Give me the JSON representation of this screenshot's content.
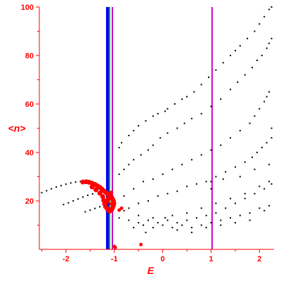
{
  "chart_data": {
    "type": "scatter",
    "title": "",
    "xlabel": "E",
    "ylabel": "<n>",
    "xlim": [
      -2.55,
      2.3
    ],
    "ylim": [
      0,
      100
    ],
    "x_ticks": [
      -2,
      -1,
      0,
      1,
      2
    ],
    "y_ticks": [
      20,
      40,
      60,
      80,
      100
    ],
    "grid": false,
    "legend": "none",
    "colors": {
      "axis": "#ff0000",
      "points": "#000000",
      "highlight": "#ff0000",
      "line_blue": "#0000ff",
      "line_green": "#00aa00",
      "line_magenta": "#cc00cc"
    },
    "vertical_lines": [
      {
        "x": -1.15,
        "color": "#0000ff"
      },
      {
        "x": -1.13,
        "color": "#0000ff"
      },
      {
        "x": -1.1,
        "color": "#00aa00"
      },
      {
        "x": -1.04,
        "color": "#cc00cc"
      },
      {
        "x": 1.02,
        "color": "#cc00cc"
      }
    ],
    "series": [
      {
        "color": "#000000",
        "points": [
          [
            -2.5,
            23.4
          ],
          [
            -2.4,
            24.2
          ],
          [
            -2.3,
            25
          ],
          [
            -2.2,
            25.7
          ],
          [
            -2.1,
            26.3
          ],
          [
            -2.0,
            26.9
          ],
          [
            -1.9,
            27.4
          ],
          [
            -1.8,
            27.8
          ],
          [
            -1.7,
            28.0
          ],
          [
            -2.05,
            18.5
          ],
          [
            -1.95,
            19.2
          ],
          [
            -1.85,
            20
          ],
          [
            -1.75,
            20.8
          ],
          [
            -1.65,
            21.6
          ],
          [
            -1.55,
            22.3
          ],
          [
            -1.45,
            22.9
          ],
          [
            -1.6,
            15.5
          ],
          [
            -1.5,
            16.2
          ],
          [
            -1.4,
            16.9
          ],
          [
            -1.3,
            17.6
          ],
          [
            -1.2,
            18.2
          ],
          [
            -0.9,
            42
          ],
          [
            -0.85,
            44
          ],
          [
            -0.7,
            47
          ],
          [
            -0.6,
            49
          ],
          [
            -0.5,
            51
          ],
          [
            -0.35,
            53
          ],
          [
            -0.2,
            55
          ],
          [
            -0.1,
            56
          ],
          [
            0.05,
            57
          ],
          [
            0.1,
            58
          ],
          [
            0.25,
            60
          ],
          [
            0.4,
            62
          ],
          [
            0.5,
            63
          ],
          [
            0.65,
            65
          ],
          [
            0.8,
            68
          ],
          [
            0.95,
            71
          ],
          [
            1.1,
            74
          ],
          [
            1.25,
            77
          ],
          [
            1.4,
            80
          ],
          [
            1.5,
            82
          ],
          [
            1.6,
            84
          ],
          [
            1.75,
            87
          ],
          [
            1.9,
            90
          ],
          [
            2.0,
            93
          ],
          [
            2.1,
            96
          ],
          [
            2.2,
            99
          ],
          [
            2.25,
            100
          ],
          [
            -0.9,
            31
          ],
          [
            -0.8,
            33
          ],
          [
            -0.7,
            35
          ],
          [
            -0.6,
            37
          ],
          [
            -0.45,
            39
          ],
          [
            -0.3,
            41
          ],
          [
            -0.2,
            43
          ],
          [
            -0.05,
            46
          ],
          [
            0.1,
            48
          ],
          [
            0.3,
            50
          ],
          [
            0.45,
            52
          ],
          [
            0.6,
            54
          ],
          [
            0.8,
            56
          ],
          [
            1.0,
            59
          ],
          [
            1.2,
            62
          ],
          [
            1.4,
            66
          ],
          [
            1.55,
            69
          ],
          [
            1.7,
            72
          ],
          [
            1.85,
            75
          ],
          [
            1.95,
            78
          ],
          [
            2.05,
            80
          ],
          [
            2.15,
            83
          ],
          [
            2.2,
            85
          ],
          [
            2.25,
            87
          ],
          [
            -0.8,
            22
          ],
          [
            -0.6,
            25
          ],
          [
            -0.4,
            28
          ],
          [
            -0.2,
            29
          ],
          [
            0.0,
            31
          ],
          [
            0.2,
            33
          ],
          [
            0.4,
            35
          ],
          [
            0.6,
            37
          ],
          [
            0.8,
            39
          ],
          [
            1.0,
            41
          ],
          [
            1.2,
            43
          ],
          [
            1.4,
            46
          ],
          [
            1.6,
            49
          ],
          [
            1.8,
            52
          ],
          [
            1.9,
            55
          ],
          [
            2.0,
            58
          ],
          [
            2.1,
            61
          ],
          [
            2.15,
            63
          ],
          [
            2.2,
            65
          ],
          [
            2.25,
            50
          ],
          [
            -0.7,
            17
          ],
          [
            -0.5,
            19
          ],
          [
            -0.3,
            20
          ],
          [
            -0.1,
            22
          ],
          [
            0.1,
            23
          ],
          [
            0.3,
            24
          ],
          [
            0.5,
            26
          ],
          [
            0.7,
            27
          ],
          [
            0.9,
            28
          ],
          [
            1.1,
            30
          ],
          [
            1.3,
            32
          ],
          [
            1.5,
            34
          ],
          [
            1.7,
            36
          ],
          [
            1.85,
            38
          ],
          [
            1.95,
            40
          ],
          [
            2.05,
            42
          ],
          [
            2.15,
            44
          ],
          [
            2.25,
            46
          ],
          [
            -0.9,
            13
          ],
          [
            -0.7,
            12
          ],
          [
            -0.5,
            11
          ],
          [
            -0.3,
            12
          ],
          [
            -0.1,
            11
          ],
          [
            0.1,
            12
          ],
          [
            0.3,
            11
          ],
          [
            0.5,
            12
          ],
          [
            0.7,
            13
          ],
          [
            0.9,
            14
          ],
          [
            1.1,
            15
          ],
          [
            1.3,
            17
          ],
          [
            1.5,
            19
          ],
          [
            1.7,
            21
          ],
          [
            1.9,
            23
          ],
          [
            2.1,
            25
          ],
          [
            2.25,
            27
          ],
          [
            -0.6,
            9
          ],
          [
            -0.4,
            10
          ],
          [
            -0.2,
            9
          ],
          [
            0.0,
            10
          ],
          [
            0.2,
            9
          ],
          [
            0.4,
            10
          ],
          [
            0.6,
            9
          ],
          [
            0.8,
            10
          ],
          [
            1.0,
            11
          ],
          [
            1.2,
            12
          ],
          [
            1.4,
            13
          ],
          [
            1.6,
            14
          ],
          [
            1.8,
            15
          ],
          [
            2.0,
            17
          ],
          [
            2.2,
            18
          ],
          [
            -0.8,
            16
          ],
          [
            -0.5,
            14
          ],
          [
            -0.2,
            13
          ],
          [
            0.2,
            14
          ],
          [
            0.5,
            15
          ],
          [
            0.8,
            17
          ],
          [
            1.1,
            19
          ],
          [
            1.4,
            21
          ],
          [
            1.7,
            23
          ],
          [
            2.0,
            26
          ],
          [
            2.2,
            28
          ],
          [
            0.3,
            8
          ],
          [
            0.6,
            7
          ],
          [
            0.9,
            9
          ],
          [
            1.2,
            10
          ],
          [
            1.5,
            11
          ],
          [
            1.8,
            12
          ],
          [
            2.1,
            16
          ],
          [
            -0.35,
            7
          ],
          [
            0.05,
            13
          ],
          [
            1.0,
            28
          ],
          [
            1.0,
            25
          ],
          [
            1.25,
            29
          ],
          [
            1.6,
            30
          ],
          [
            1.9,
            33
          ],
          [
            2.2,
            35
          ]
        ]
      },
      {
        "color": "#ff0000",
        "points": [
          [
            -1.65,
            27.8
          ],
          [
            -1.58,
            27.9
          ],
          [
            -1.52,
            27.7
          ],
          [
            -1.46,
            27.3
          ],
          [
            -1.4,
            26.8
          ],
          [
            -1.35,
            26.2
          ],
          [
            -1.3,
            25.6
          ],
          [
            -1.26,
            24.9
          ],
          [
            -1.22,
            24.2
          ],
          [
            -1.18,
            23.6
          ],
          [
            -1.14,
            22.9
          ],
          [
            -1.1,
            22.3
          ],
          [
            -1.06,
            21.6
          ],
          [
            -1.04,
            20.8
          ],
          [
            -1.02,
            20
          ],
          [
            -1.01,
            19
          ],
          [
            -1.02,
            18
          ],
          [
            -1.04,
            17
          ],
          [
            -1.06,
            16.2
          ],
          [
            -1.1,
            15.8
          ],
          [
            -1.14,
            16.5
          ],
          [
            -1.18,
            17.6
          ],
          [
            -1.2,
            18.8
          ],
          [
            -1.22,
            20.3
          ],
          [
            -1.24,
            21.8
          ],
          [
            -1.3,
            23.2
          ],
          [
            -1.38,
            24.6
          ],
          [
            -1.46,
            25.8
          ],
          [
            -1.16,
            19.8
          ],
          [
            -1.12,
            21
          ],
          [
            -1.08,
            18.8
          ],
          [
            -1.06,
            23.5
          ],
          [
            -0.9,
            16.2
          ],
          [
            -0.85,
            17
          ],
          [
            -0.45,
            2
          ],
          [
            -0.98,
            0.8
          ],
          [
            -1.0,
            1.2
          ]
        ]
      }
    ]
  }
}
